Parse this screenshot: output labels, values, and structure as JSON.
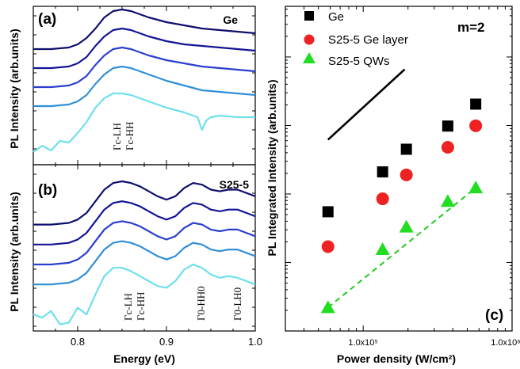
{
  "chart_data": [
    {
      "panel": "(a)",
      "type": "line",
      "sample_label": "Ge",
      "ylabel": "PL Intensity (arb.units)",
      "x_range": [
        0.75,
        1.0
      ],
      "annotations": [
        "Γc-LH",
        "Γc-HH"
      ],
      "curve_colors": [
        "#0e0e6e",
        "#141496",
        "#2a3fd0",
        "#2f8fd8",
        "#6ee0ee"
      ],
      "curves": [
        {
          "x": [
            0.75,
            0.77,
            0.79,
            0.8,
            0.81,
            0.82,
            0.83,
            0.84,
            0.85,
            0.86,
            0.87,
            0.88,
            0.9,
            0.92,
            0.94,
            0.96,
            0.98,
            1.0
          ],
          "y": [
            0.73,
            0.73,
            0.74,
            0.76,
            0.8,
            0.86,
            0.93,
            0.97,
            0.98,
            0.97,
            0.95,
            0.93,
            0.9,
            0.88,
            0.86,
            0.85,
            0.84,
            0.83
          ]
        },
        {
          "x": [
            0.75,
            0.77,
            0.79,
            0.8,
            0.81,
            0.82,
            0.83,
            0.84,
            0.85,
            0.86,
            0.87,
            0.88,
            0.9,
            0.92,
            0.94,
            0.96,
            0.98,
            1.0
          ],
          "y": [
            0.61,
            0.61,
            0.62,
            0.64,
            0.68,
            0.75,
            0.81,
            0.85,
            0.86,
            0.85,
            0.83,
            0.81,
            0.78,
            0.76,
            0.75,
            0.74,
            0.73,
            0.72
          ]
        },
        {
          "x": [
            0.75,
            0.77,
            0.79,
            0.8,
            0.81,
            0.82,
            0.83,
            0.84,
            0.85,
            0.86,
            0.87,
            0.88,
            0.9,
            0.92,
            0.94,
            0.96,
            0.98,
            1.0
          ],
          "y": [
            0.49,
            0.49,
            0.5,
            0.52,
            0.56,
            0.63,
            0.69,
            0.73,
            0.74,
            0.73,
            0.71,
            0.69,
            0.66,
            0.64,
            0.62,
            0.61,
            0.6,
            0.59
          ]
        },
        {
          "x": [
            0.75,
            0.77,
            0.79,
            0.8,
            0.81,
            0.82,
            0.83,
            0.84,
            0.85,
            0.86,
            0.87,
            0.88,
            0.9,
            0.92,
            0.94,
            0.96,
            0.98,
            1.0
          ],
          "y": [
            0.37,
            0.37,
            0.38,
            0.4,
            0.44,
            0.51,
            0.57,
            0.61,
            0.62,
            0.61,
            0.59,
            0.57,
            0.53,
            0.5,
            0.47,
            0.46,
            0.45,
            0.44
          ]
        },
        {
          "x": [
            0.75,
            0.76,
            0.77,
            0.78,
            0.79,
            0.8,
            0.81,
            0.82,
            0.83,
            0.84,
            0.85,
            0.86,
            0.87,
            0.88,
            0.9,
            0.92,
            0.935,
            0.94,
            0.945,
            0.95,
            0.96,
            0.98,
            1.0
          ],
          "y": [
            0.08,
            0.12,
            0.09,
            0.15,
            0.14,
            0.2,
            0.27,
            0.36,
            0.42,
            0.45,
            0.45,
            0.44,
            0.42,
            0.4,
            0.36,
            0.33,
            0.3,
            0.22,
            0.28,
            0.3,
            0.31,
            0.3,
            0.3
          ]
        }
      ]
    },
    {
      "panel": "(b)",
      "type": "line",
      "sample_label": "S25-5",
      "xlabel": "Energy (eV)",
      "ylabel": "PL Intensity (arb.units)",
      "x_range": [
        0.75,
        1.0
      ],
      "x_ticks": [
        "0.8",
        "0.9",
        "1.0"
      ],
      "annotations": [
        "Γc-LH",
        "Γc-HH",
        "Γ0-HH0",
        "Γ0-LH0"
      ],
      "curve_colors": [
        "#0e0e6e",
        "#141496",
        "#2a3fd0",
        "#2f8fd8",
        "#6ee0ee"
      ],
      "curves": [
        {
          "x": [
            0.75,
            0.77,
            0.79,
            0.8,
            0.81,
            0.82,
            0.83,
            0.84,
            0.85,
            0.86,
            0.87,
            0.88,
            0.89,
            0.9,
            0.91,
            0.92,
            0.93,
            0.94,
            0.95,
            0.96,
            0.97,
            0.98,
            0.99,
            1.0
          ],
          "y": [
            0.64,
            0.64,
            0.65,
            0.67,
            0.71,
            0.78,
            0.85,
            0.89,
            0.9,
            0.89,
            0.87,
            0.84,
            0.81,
            0.79,
            0.81,
            0.86,
            0.89,
            0.88,
            0.85,
            0.84,
            0.85,
            0.85,
            0.83,
            0.81
          ]
        },
        {
          "x": [
            0.75,
            0.77,
            0.79,
            0.8,
            0.81,
            0.82,
            0.83,
            0.84,
            0.85,
            0.86,
            0.87,
            0.88,
            0.89,
            0.9,
            0.91,
            0.92,
            0.93,
            0.94,
            0.95,
            0.96,
            0.97,
            0.98,
            0.99,
            1.0
          ],
          "y": [
            0.52,
            0.52,
            0.53,
            0.55,
            0.59,
            0.66,
            0.73,
            0.77,
            0.78,
            0.77,
            0.75,
            0.72,
            0.69,
            0.67,
            0.69,
            0.74,
            0.77,
            0.76,
            0.73,
            0.72,
            0.73,
            0.73,
            0.71,
            0.69
          ]
        },
        {
          "x": [
            0.75,
            0.77,
            0.79,
            0.8,
            0.81,
            0.82,
            0.83,
            0.84,
            0.85,
            0.86,
            0.87,
            0.88,
            0.89,
            0.9,
            0.91,
            0.92,
            0.93,
            0.94,
            0.95,
            0.96,
            0.97,
            0.98,
            0.99,
            1.0
          ],
          "y": [
            0.4,
            0.4,
            0.41,
            0.43,
            0.47,
            0.54,
            0.61,
            0.65,
            0.66,
            0.65,
            0.63,
            0.6,
            0.57,
            0.55,
            0.57,
            0.62,
            0.65,
            0.64,
            0.61,
            0.6,
            0.61,
            0.61,
            0.59,
            0.57
          ]
        },
        {
          "x": [
            0.75,
            0.77,
            0.79,
            0.8,
            0.81,
            0.82,
            0.83,
            0.84,
            0.85,
            0.86,
            0.87,
            0.88,
            0.89,
            0.9,
            0.91,
            0.92,
            0.93,
            0.94,
            0.95,
            0.96,
            0.97,
            0.98,
            0.99,
            1.0
          ],
          "y": [
            0.28,
            0.28,
            0.29,
            0.31,
            0.35,
            0.42,
            0.49,
            0.53,
            0.54,
            0.53,
            0.51,
            0.48,
            0.45,
            0.43,
            0.45,
            0.5,
            0.53,
            0.52,
            0.49,
            0.48,
            0.49,
            0.49,
            0.47,
            0.45
          ]
        },
        {
          "x": [
            0.75,
            0.76,
            0.77,
            0.78,
            0.79,
            0.8,
            0.81,
            0.82,
            0.83,
            0.84,
            0.85,
            0.86,
            0.87,
            0.88,
            0.89,
            0.9,
            0.91,
            0.92,
            0.93,
            0.94,
            0.95,
            0.96,
            0.97,
            0.98,
            0.99,
            1.0
          ],
          "y": [
            0.1,
            0.08,
            0.12,
            0.04,
            0.05,
            0.14,
            0.1,
            0.22,
            0.33,
            0.38,
            0.38,
            0.36,
            0.33,
            0.3,
            0.27,
            0.26,
            0.3,
            0.37,
            0.4,
            0.38,
            0.34,
            0.32,
            0.33,
            0.32,
            0.3,
            0.28
          ]
        }
      ]
    },
    {
      "panel": "(c)",
      "type": "scatter",
      "xscale": "log",
      "yscale": "log",
      "xlabel": "Power density (W/cm²)",
      "ylabel": "PL Integrated Intensity (arb.units)",
      "xlim": [
        30000,
        1000000
      ],
      "x_ticks": [
        "1.0x10⁵",
        "1.0x10⁶"
      ],
      "legend_position": "top-left",
      "series": [
        {
          "name": "Ge",
          "marker": "square",
          "color": "#000000",
          "x": [
            58000,
            135000,
            195000,
            370000,
            570000
          ],
          "y": [
            0.00055,
            0.0021,
            0.0045,
            0.0098,
            0.0205
          ]
        },
        {
          "name": "S25-5 Ge layer",
          "marker": "circle",
          "color": "#ee2222",
          "x": [
            58000,
            135000,
            195000,
            370000,
            570000
          ],
          "y": [
            0.00017,
            0.00085,
            0.0019,
            0.0048,
            0.0099
          ]
        },
        {
          "name": "S25-5 QWs",
          "marker": "triangle",
          "color": "#22dd22",
          "x": [
            58000,
            135000,
            195000,
            370000,
            570000
          ],
          "y": [
            2.2e-05,
            0.000155,
            0.00033,
            0.00078,
            0.00123
          ]
        }
      ],
      "fit_line": {
        "color": "#22cc22",
        "style": "dashed",
        "x": [
          58000,
          570000
        ],
        "y": [
          2.2e-05,
          0.00123
        ]
      },
      "reference_line": {
        "label": "m=2",
        "color": "#000000",
        "x": [
          58000,
          190000
        ],
        "y": [
          0.0062,
          0.066
        ]
      },
      "panel_label": "(c)"
    }
  ]
}
